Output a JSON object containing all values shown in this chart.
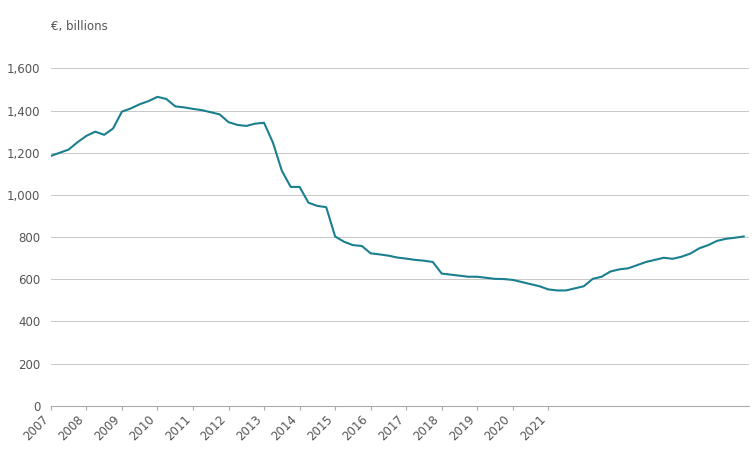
{
  "ylabel": "€, billions",
  "line_color": "#1a7f8e",
  "line_width": 1.5,
  "background_color": "#ffffff",
  "grid_color": "#c8c8c8",
  "ylim": [
    0,
    1700
  ],
  "yticks": [
    0,
    200,
    400,
    600,
    800,
    1000,
    1200,
    1400,
    1600
  ],
  "xtick_labels": [
    "2007",
    "2008",
    "2009",
    "2010",
    "2011",
    "2012",
    "2013",
    "2014",
    "2015",
    "2016",
    "2017",
    "2018",
    "2019",
    "2020",
    "2021"
  ],
  "data": [
    1185,
    1200,
    1215,
    1250,
    1280,
    1300,
    1285,
    1315,
    1395,
    1410,
    1430,
    1445,
    1465,
    1455,
    1420,
    1415,
    1408,
    1402,
    1392,
    1382,
    1345,
    1332,
    1327,
    1338,
    1342,
    1248,
    1115,
    1038,
    1038,
    963,
    948,
    942,
    803,
    778,
    762,
    758,
    723,
    718,
    712,
    703,
    698,
    692,
    688,
    682,
    627,
    622,
    617,
    612,
    612,
    607,
    602,
    601,
    597,
    587,
    577,
    567,
    552,
    547,
    547,
    557,
    567,
    602,
    612,
    637,
    647,
    652,
    667,
    682,
    692,
    702,
    697,
    707,
    722,
    747,
    762,
    782,
    792,
    797,
    803
  ]
}
